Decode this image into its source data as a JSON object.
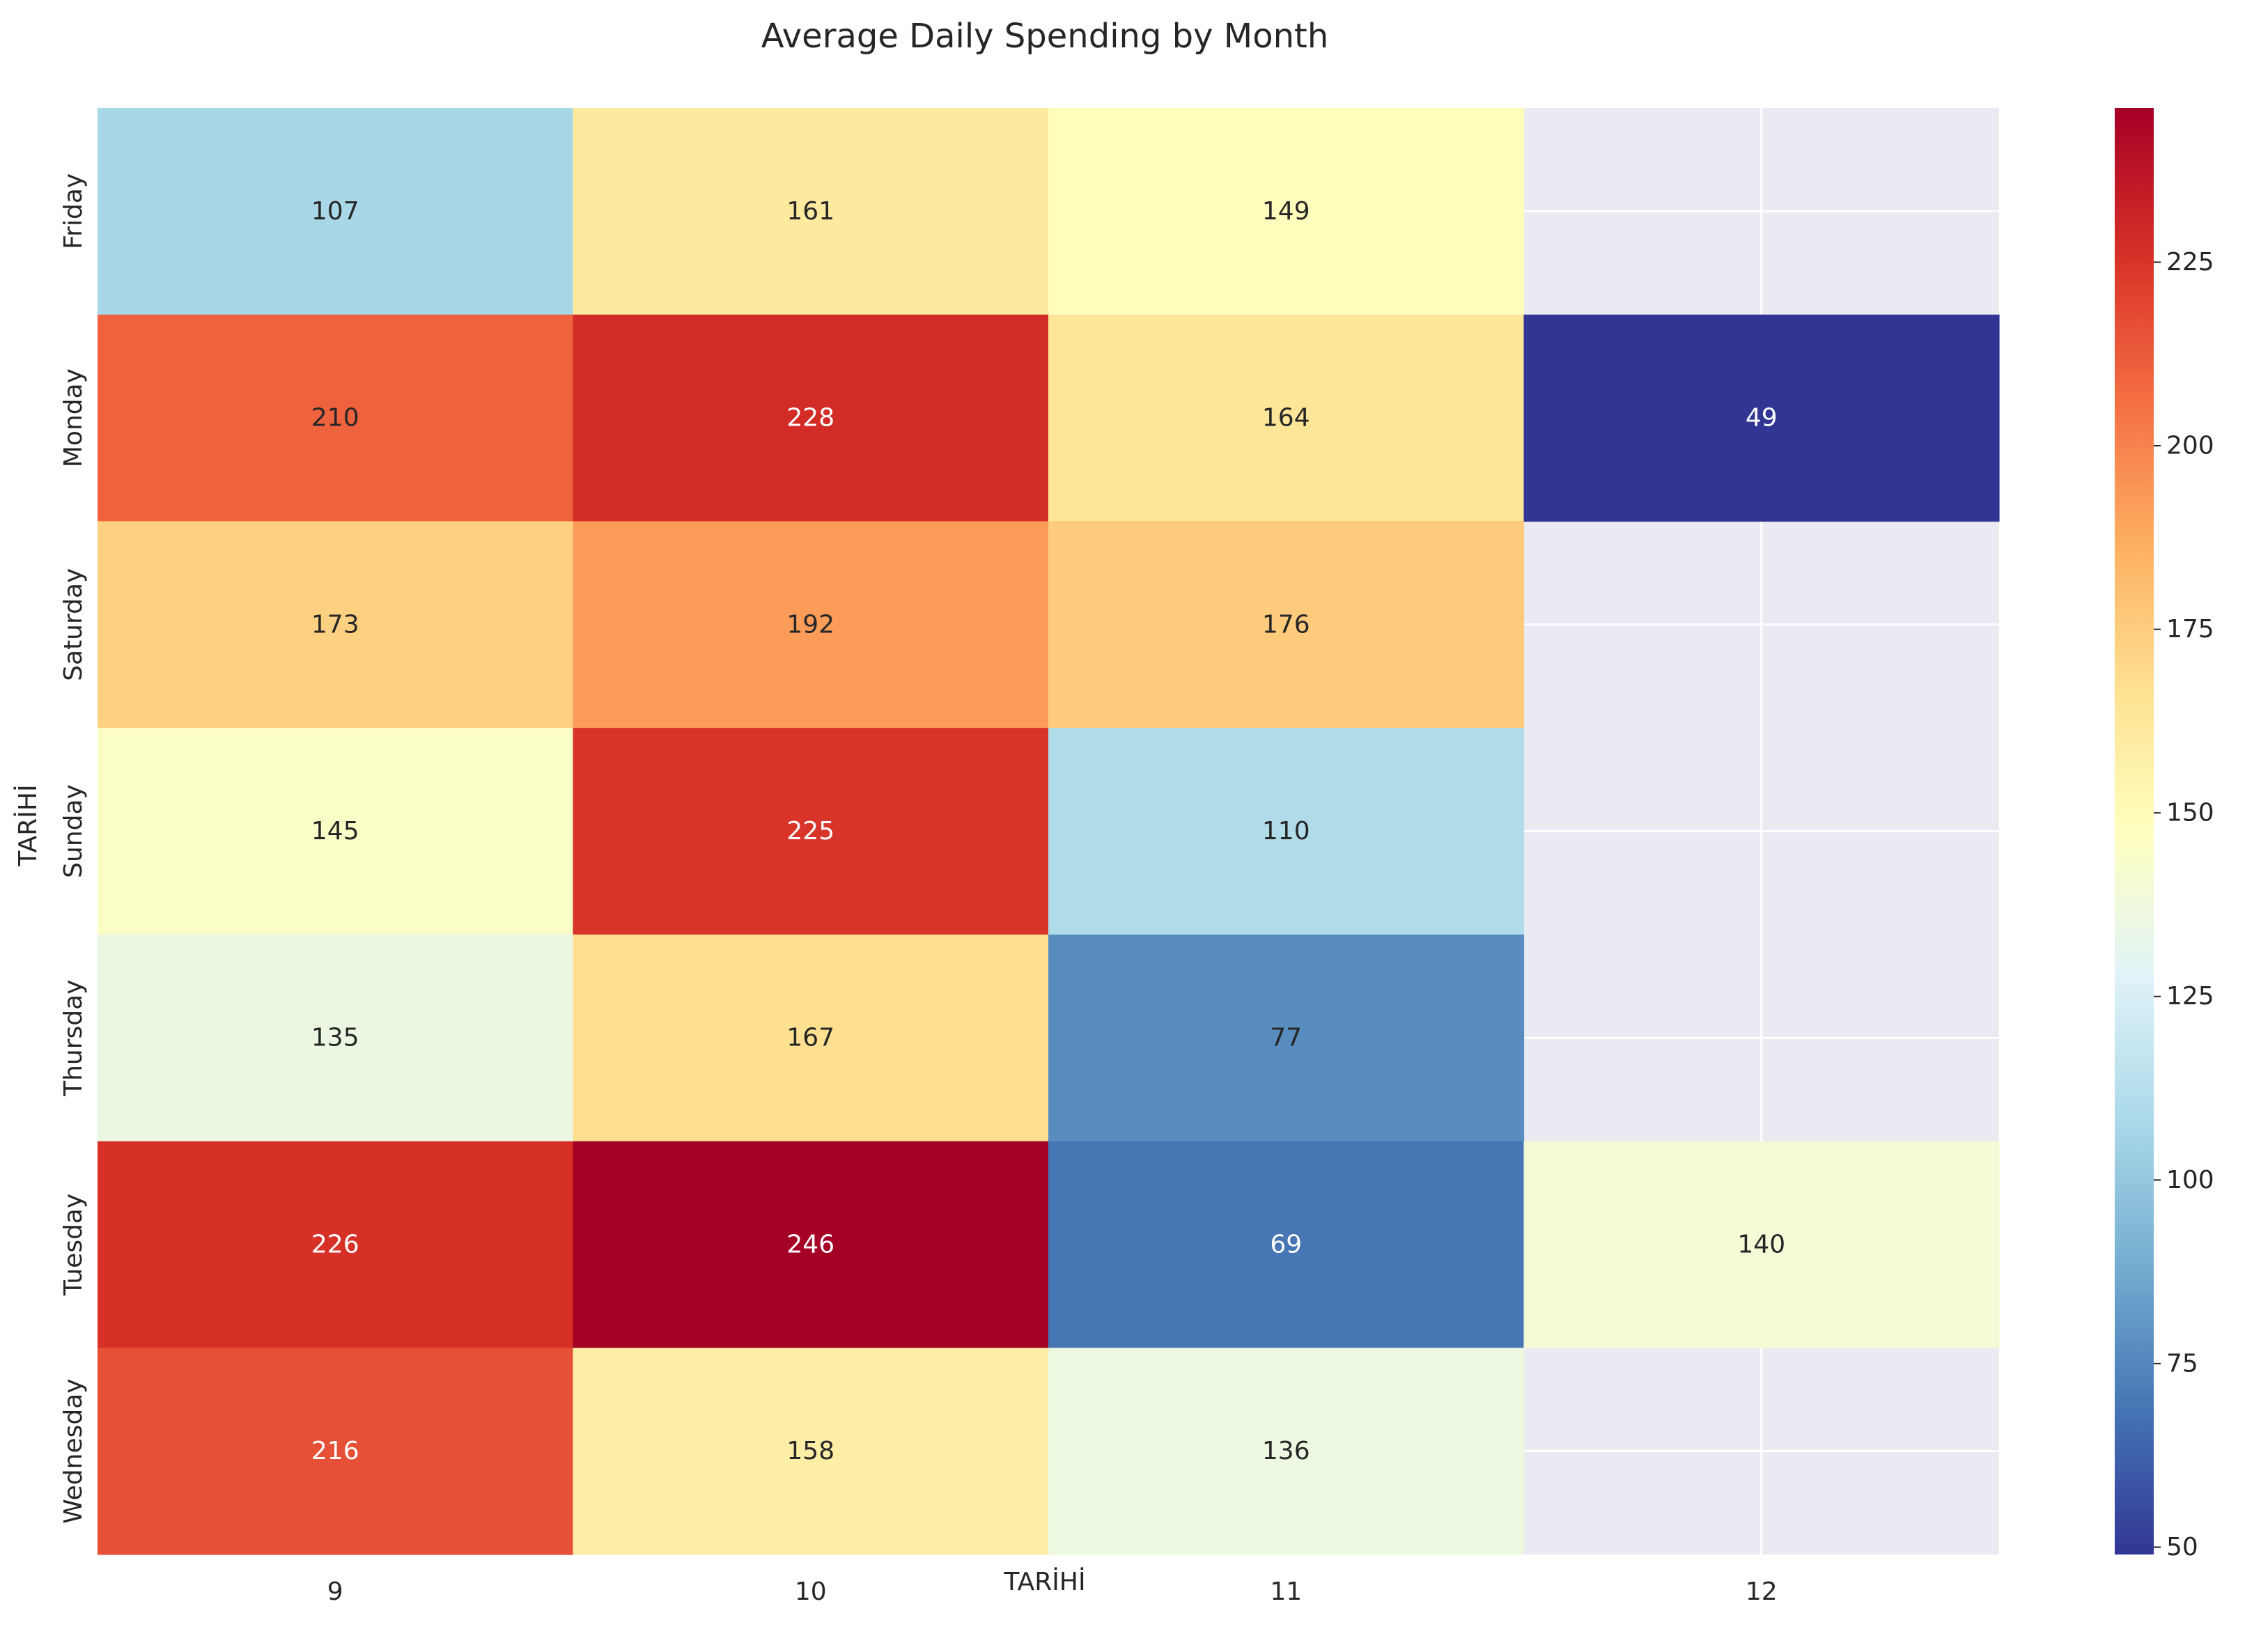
{
  "chart_data": {
    "type": "heatmap",
    "title": "Average Daily Spending by Month",
    "xlabel": "TARİHİ",
    "ylabel": "TARİHİ",
    "x_categories": [
      "9",
      "10",
      "11",
      "12"
    ],
    "y_categories": [
      "Friday",
      "Monday",
      "Saturday",
      "Sunday",
      "Thursday",
      "Tuesday",
      "Wednesday"
    ],
    "values": [
      [
        107,
        161,
        149,
        null
      ],
      [
        210,
        228,
        164,
        49
      ],
      [
        173,
        192,
        176,
        null
      ],
      [
        145,
        225,
        110,
        null
      ],
      [
        135,
        167,
        77,
        null
      ],
      [
        226,
        246,
        69,
        140
      ],
      [
        216,
        158,
        136,
        null
      ]
    ],
    "colorscale": "RdYlBu_r",
    "color_range": [
      49,
      246
    ],
    "colorbar_ticks": [
      50,
      75,
      100,
      125,
      150,
      175,
      200,
      225
    ],
    "missing_color": "#eaeaf2",
    "grid": true
  }
}
